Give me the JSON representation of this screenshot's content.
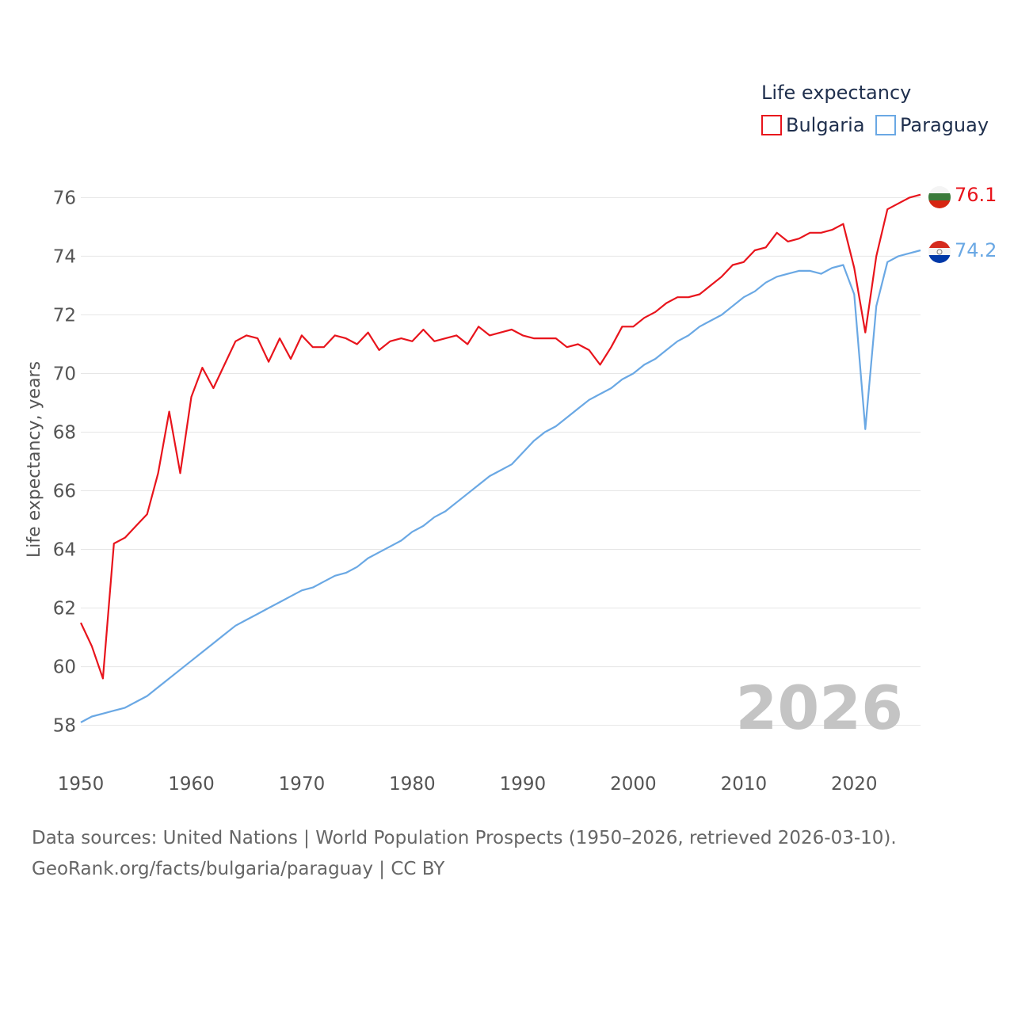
{
  "chart_data": {
    "type": "line",
    "legend": {
      "title": "Life expectancy",
      "position": "top-right"
    },
    "ylabel": "Life expectancy, years",
    "xlabel": "",
    "xlim": [
      1950,
      2026
    ],
    "ylim": [
      56.8,
      77.2
    ],
    "x_ticks": [
      1950,
      1960,
      1970,
      1980,
      1990,
      2000,
      2010,
      2020
    ],
    "y_ticks": [
      58,
      60,
      62,
      64,
      66,
      68,
      70,
      72,
      74,
      76
    ],
    "grid": true,
    "year_watermark": "2026",
    "series": [
      {
        "name": "Bulgaria",
        "color": "#e8141c",
        "end_label": "76.1",
        "flag": "bulgaria-flag",
        "x": [
          1950,
          1951,
          1952,
          1953,
          1954,
          1955,
          1956,
          1957,
          1958,
          1959,
          1960,
          1961,
          1962,
          1963,
          1964,
          1965,
          1966,
          1967,
          1968,
          1969,
          1970,
          1971,
          1972,
          1973,
          1974,
          1975,
          1976,
          1977,
          1978,
          1979,
          1980,
          1981,
          1982,
          1983,
          1984,
          1985,
          1986,
          1987,
          1988,
          1989,
          1990,
          1991,
          1992,
          1993,
          1994,
          1995,
          1996,
          1997,
          1998,
          1999,
          2000,
          2001,
          2002,
          2003,
          2004,
          2005,
          2006,
          2007,
          2008,
          2009,
          2010,
          2011,
          2012,
          2013,
          2014,
          2015,
          2016,
          2017,
          2018,
          2019,
          2020,
          2021,
          2022,
          2023,
          2024,
          2025,
          2026
        ],
        "values": [
          61.5,
          60.7,
          59.6,
          64.2,
          64.4,
          64.8,
          65.2,
          66.6,
          68.7,
          66.6,
          69.2,
          70.2,
          69.5,
          70.3,
          71.1,
          71.3,
          71.2,
          70.4,
          71.2,
          70.5,
          71.3,
          70.9,
          70.9,
          71.3,
          71.2,
          71.0,
          71.4,
          70.8,
          71.1,
          71.2,
          71.1,
          71.5,
          71.1,
          71.2,
          71.3,
          71.0,
          71.6,
          71.3,
          71.4,
          71.5,
          71.3,
          71.2,
          71.2,
          71.2,
          70.9,
          71.0,
          70.8,
          70.3,
          70.9,
          71.6,
          71.6,
          71.9,
          72.1,
          72.4,
          72.6,
          72.6,
          72.7,
          73.0,
          73.3,
          73.7,
          73.8,
          74.2,
          74.3,
          74.8,
          74.5,
          74.6,
          74.8,
          74.8,
          74.9,
          75.1,
          73.6,
          71.4,
          74.0,
          75.6,
          75.8,
          76.0,
          76.1
        ]
      },
      {
        "name": "Paraguay",
        "color": "#6aa8e4",
        "end_label": "74.2",
        "flag": "paraguay-flag",
        "x": [
          1950,
          1951,
          1952,
          1953,
          1954,
          1955,
          1956,
          1957,
          1958,
          1959,
          1960,
          1961,
          1962,
          1963,
          1964,
          1965,
          1966,
          1967,
          1968,
          1969,
          1970,
          1971,
          1972,
          1973,
          1974,
          1975,
          1976,
          1977,
          1978,
          1979,
          1980,
          1981,
          1982,
          1983,
          1984,
          1985,
          1986,
          1987,
          1988,
          1989,
          1990,
          1991,
          1992,
          1993,
          1994,
          1995,
          1996,
          1997,
          1998,
          1999,
          2000,
          2001,
          2002,
          2003,
          2004,
          2005,
          2006,
          2007,
          2008,
          2009,
          2010,
          2011,
          2012,
          2013,
          2014,
          2015,
          2016,
          2017,
          2018,
          2019,
          2020,
          2021,
          2022,
          2023,
          2024,
          2025,
          2026
        ],
        "values": [
          58.1,
          58.3,
          58.4,
          58.5,
          58.6,
          58.8,
          59.0,
          59.3,
          59.6,
          59.9,
          60.2,
          60.5,
          60.8,
          61.1,
          61.4,
          61.6,
          61.8,
          62.0,
          62.2,
          62.4,
          62.6,
          62.7,
          62.9,
          63.1,
          63.2,
          63.4,
          63.7,
          63.9,
          64.1,
          64.3,
          64.6,
          64.8,
          65.1,
          65.3,
          65.6,
          65.9,
          66.2,
          66.5,
          66.7,
          66.9,
          67.3,
          67.7,
          68.0,
          68.2,
          68.5,
          68.8,
          69.1,
          69.3,
          69.5,
          69.8,
          70.0,
          70.3,
          70.5,
          70.8,
          71.1,
          71.3,
          71.6,
          71.8,
          72.0,
          72.3,
          72.6,
          72.8,
          73.1,
          73.3,
          73.4,
          73.5,
          73.5,
          73.4,
          73.6,
          73.7,
          72.7,
          68.1,
          72.3,
          73.8,
          74.0,
          74.1,
          74.2
        ]
      }
    ]
  },
  "footer": {
    "line1": "Data sources: United Nations | World Population Prospects (1950–2026, retrieved 2026-03-10).",
    "line2": "GeoRank.org/facts/bulgaria/paraguay | CC BY"
  }
}
